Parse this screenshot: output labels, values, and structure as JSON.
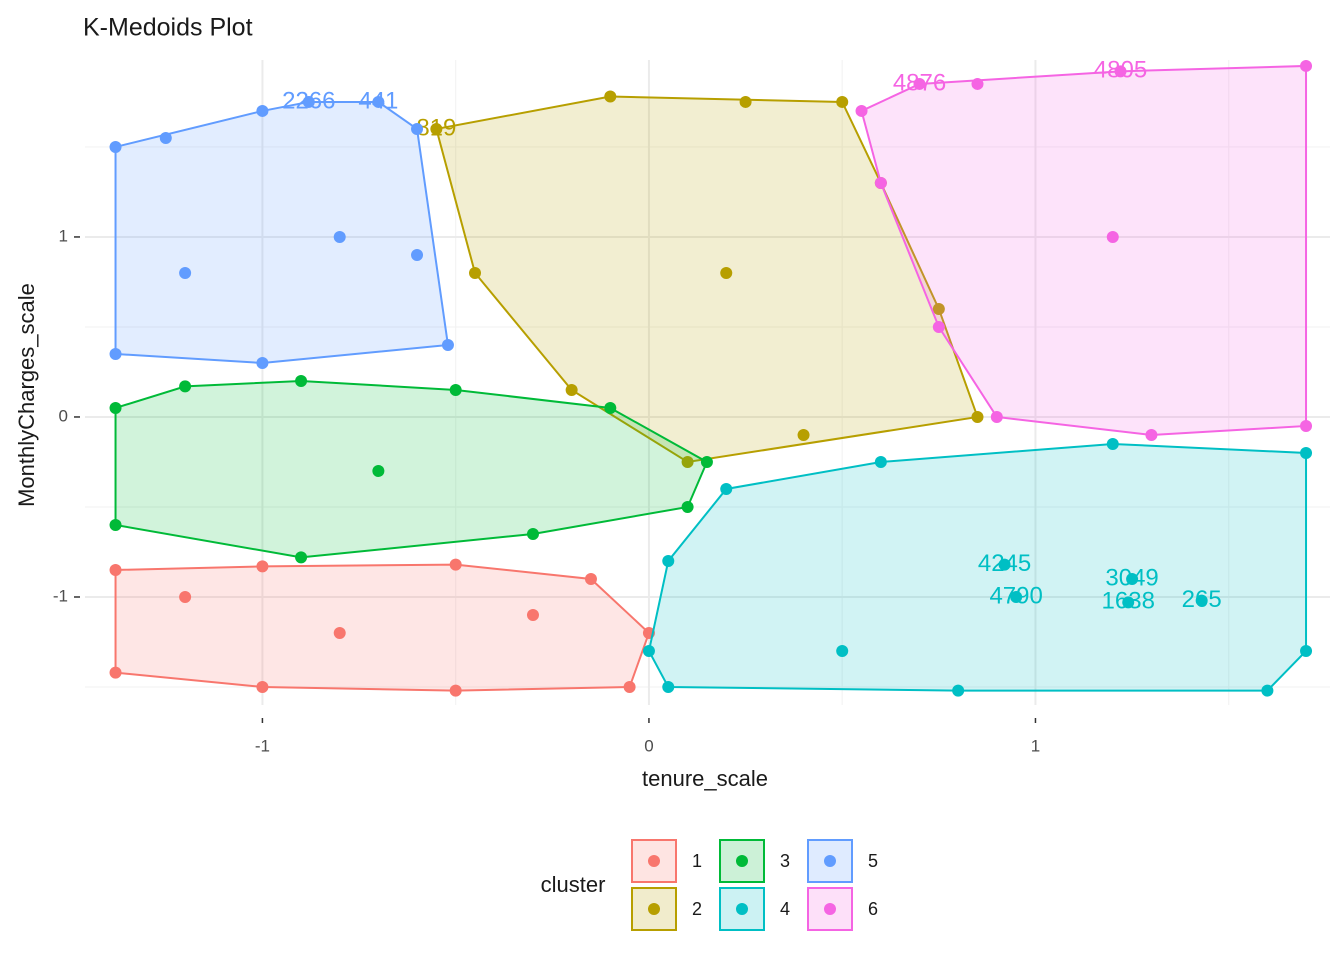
{
  "chart_data": {
    "type": "scatter",
    "title": "K-Medoids Plot",
    "x_label": "tenure_scale",
    "y_label": "MonthlyCharges_scale",
    "xlim": [
      -1.459,
      1.762
    ],
    "ylim": [
      -1.6,
      1.983
    ],
    "xticks": [
      -1,
      0,
      1
    ],
    "yticks": [
      -1,
      0,
      1
    ],
    "minor_xticks": [
      -0.5,
      0.5,
      1.5
    ],
    "minor_yticks": [
      -1.5,
      -0.5,
      0.5,
      1.5
    ],
    "grid": true,
    "legend_title": "cluster",
    "legend_position": "bottom",
    "series": [
      {
        "name": "1",
        "color": "#F8766D",
        "x": [
          -1.38,
          -1.0,
          -0.5,
          -0.15,
          0.0,
          -0.05,
          -0.5,
          -1.0,
          -1.38,
          -0.8,
          -0.3,
          -1.2
        ],
        "y": [
          -0.85,
          -0.83,
          -0.82,
          -0.9,
          -1.2,
          -1.5,
          -1.52,
          -1.5,
          -1.42,
          -1.2,
          -1.1,
          -1.0
        ],
        "labels": [
          null,
          null,
          null,
          null,
          null,
          null,
          null,
          null,
          null,
          null,
          null,
          null
        ]
      },
      {
        "name": "2",
        "color": "#B79F00",
        "x": [
          -0.55,
          -0.1,
          0.25,
          0.5,
          0.6,
          0.75,
          0.85,
          0.4,
          0.1,
          -0.2,
          -0.45,
          0.2
        ],
        "y": [
          1.6,
          1.78,
          1.75,
          1.75,
          1.3,
          0.6,
          0.0,
          -0.1,
          -0.25,
          0.15,
          0.8,
          0.8
        ],
        "labels": [
          "819",
          null,
          null,
          null,
          null,
          null,
          null,
          null,
          null,
          null,
          null,
          null
        ]
      },
      {
        "name": "3",
        "color": "#00BA38",
        "x": [
          -1.38,
          -1.2,
          -0.9,
          -0.5,
          -0.1,
          0.15,
          0.1,
          -0.3,
          -0.9,
          -1.38,
          -0.7
        ],
        "y": [
          0.05,
          0.17,
          0.2,
          0.15,
          0.05,
          -0.25,
          -0.5,
          -0.65,
          -0.78,
          -0.6,
          -0.3
        ],
        "labels": [
          null,
          null,
          null,
          null,
          null,
          null,
          null,
          null,
          null,
          null,
          null
        ]
      },
      {
        "name": "4",
        "color": "#00BFC4",
        "x": [
          0.0,
          0.05,
          0.8,
          1.6,
          1.7,
          1.7,
          1.2,
          0.6,
          0.2,
          0.05,
          0.95,
          0.92,
          1.25,
          1.24,
          1.43,
          0.5
        ],
        "y": [
          -1.3,
          -1.5,
          -1.52,
          -1.52,
          -1.3,
          -0.2,
          -0.15,
          -0.25,
          -0.4,
          -0.8,
          -1.0,
          -0.82,
          -0.9,
          -1.03,
          -1.02,
          -1.3
        ],
        "labels": [
          null,
          null,
          null,
          null,
          null,
          null,
          null,
          null,
          null,
          null,
          "4790",
          "4245",
          "3049",
          "1638",
          "265",
          null
        ]
      },
      {
        "name": "5",
        "color": "#619CFF",
        "x": [
          -1.38,
          -1.38,
          -1.25,
          -1.0,
          -0.88,
          -0.7,
          -0.6,
          -0.6,
          -0.52,
          -1.0,
          -0.8,
          -1.2
        ],
        "y": [
          0.35,
          1.5,
          1.55,
          1.7,
          1.75,
          1.75,
          1.6,
          0.9,
          0.4,
          0.3,
          1.0,
          0.8
        ],
        "labels": [
          null,
          null,
          null,
          null,
          "2266",
          "441",
          null,
          null,
          null,
          null,
          null,
          null
        ]
      },
      {
        "name": "6",
        "color": "#F564E3",
        "x": [
          0.55,
          0.7,
          0.85,
          1.22,
          1.7,
          1.7,
          1.3,
          0.9,
          0.75,
          0.6,
          1.2
        ],
        "y": [
          1.7,
          1.85,
          1.85,
          1.92,
          1.95,
          -0.05,
          -0.1,
          0.0,
          0.5,
          1.3,
          1.0
        ],
        "labels": [
          null,
          "4876",
          null,
          "4805",
          null,
          null,
          null,
          null,
          null,
          null,
          null
        ]
      }
    ]
  }
}
